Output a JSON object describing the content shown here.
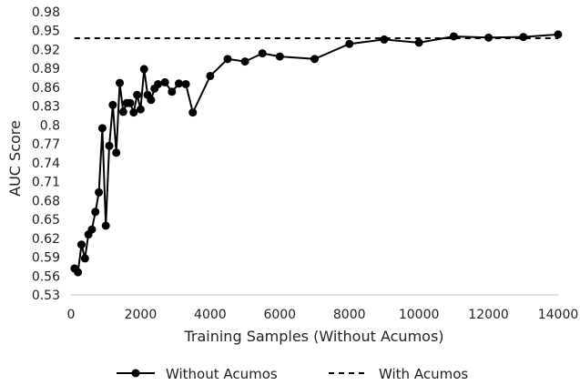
{
  "chart_data": {
    "type": "line",
    "xlabel": "Training Samples (Without Acumos)",
    "ylabel": "AUC Score",
    "xlim": [
      0,
      14000
    ],
    "ylim": [
      0.53,
      0.98
    ],
    "x_ticks": [
      "0",
      "2000",
      "4000",
      "6000",
      "8000",
      "10000",
      "12000",
      "14000"
    ],
    "y_ticks": [
      "0.53",
      "0.56",
      "0.59",
      "0.62",
      "0.65",
      "0.68",
      "0.71",
      "0.74",
      "0.77",
      "0.8",
      "0.83",
      "0.86",
      "0.89",
      "0.92",
      "0.95",
      "0.98"
    ],
    "grid": false,
    "legend_position": "bottom",
    "series": [
      {
        "name": "Without Acumos",
        "style": "solid-with-markers",
        "color": "#000000",
        "x": [
          100,
          200,
          300,
          400,
          500,
          600,
          700,
          800,
          900,
          1000,
          1100,
          1200,
          1300,
          1400,
          1500,
          1600,
          1700,
          1800,
          1900,
          2000,
          2100,
          2200,
          2300,
          2400,
          2500,
          2700,
          2900,
          3100,
          3300,
          3500,
          4000,
          4500,
          5000,
          5500,
          6000,
          7000,
          8000,
          9000,
          10000,
          11000,
          12000,
          13000,
          14000
        ],
        "y": [
          0.572,
          0.566,
          0.61,
          0.588,
          0.626,
          0.634,
          0.662,
          0.693,
          0.795,
          0.64,
          0.767,
          0.832,
          0.756,
          0.867,
          0.821,
          0.835,
          0.835,
          0.82,
          0.848,
          0.825,
          0.889,
          0.848,
          0.84,
          0.858,
          0.865,
          0.868,
          0.853,
          0.866,
          0.865,
          0.82,
          0.878,
          0.905,
          0.901,
          0.914,
          0.909,
          0.905,
          0.929,
          0.936,
          0.931,
          0.941,
          0.939,
          0.94,
          0.944
        ]
      },
      {
        "name": "With Acumos",
        "style": "dashed",
        "color": "#000000",
        "x": [
          100,
          14000
        ],
        "y": [
          0.938,
          0.938
        ]
      }
    ]
  }
}
